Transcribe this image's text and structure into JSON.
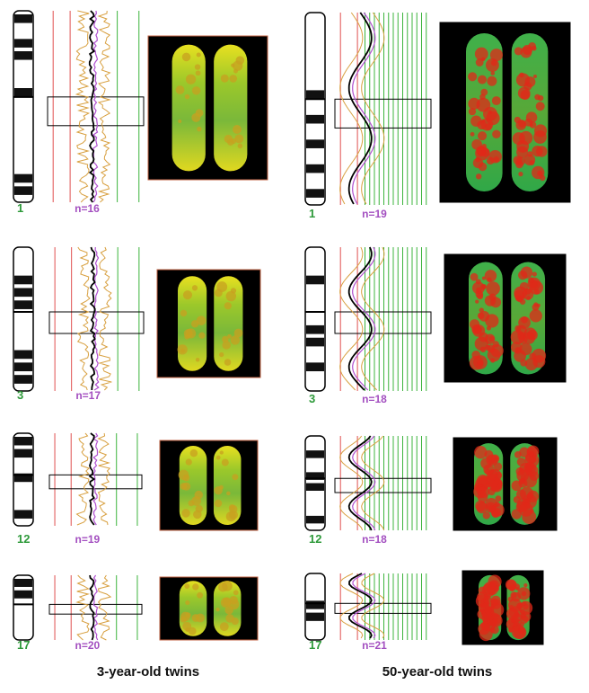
{
  "columns": [
    {
      "caption": "3-year-old twins",
      "panels": [
        {
          "chromosome": "1",
          "n": "n=16"
        },
        {
          "chromosome": "3",
          "n": "n=17"
        },
        {
          "chromosome": "12",
          "n": "n=19"
        },
        {
          "chromosome": "17",
          "n": "n=20"
        }
      ]
    },
    {
      "caption": "50-year-old twins",
      "panels": [
        {
          "chromosome": "1",
          "n": "n=19"
        },
        {
          "chromosome": "3",
          "n": "n=18"
        },
        {
          "chromosome": "12",
          "n": "n=18"
        },
        {
          "chromosome": "17",
          "n": "n=21"
        }
      ]
    }
  ]
}
